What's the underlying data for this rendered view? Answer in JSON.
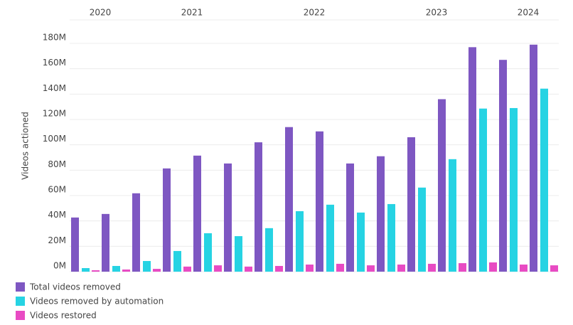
{
  "chart_data": {
    "type": "bar",
    "y_label": "Videos actioned",
    "categories": [
      null,
      null,
      null,
      null,
      null,
      null,
      null,
      null,
      null,
      null,
      null,
      null,
      null,
      null,
      null,
      null
    ],
    "top_ticks": [
      {
        "value": 0.5,
        "label": "2020"
      },
      {
        "value": 3.5,
        "label": "2021"
      },
      {
        "value": 7.5,
        "label": "2022"
      },
      {
        "value": 11.5,
        "label": "2023"
      },
      {
        "value": 14.5,
        "label": "2024"
      }
    ],
    "series": [
      {
        "name": "Total videos removed",
        "color": "#7e57c2",
        "values": [
          42.7,
          45.5,
          61.8,
          81.4,
          91.5,
          85.3,
          102,
          114,
          110.6,
          85.3,
          91,
          106,
          136,
          177,
          167,
          179
        ]
      },
      {
        "name": "Videos removed by automation",
        "color": "#26d3e3",
        "values": [
          2.8,
          4.5,
          8.4,
          16.3,
          30.3,
          28,
          34.3,
          47.7,
          52.8,
          46.6,
          53.3,
          66.3,
          88.7,
          128.6,
          129,
          144.3
        ]
      },
      {
        "name": "Videos restored",
        "color": "#e84bc3",
        "values": [
          1.1,
          1.7,
          2.2,
          4,
          5,
          4,
          4.5,
          5.6,
          6.2,
          5,
          5.6,
          6.2,
          6.7,
          7.3,
          5.6,
          5
        ]
      }
    ],
    "ylim": [
      0,
      180
    ],
    "yticks": [
      {
        "value": 0,
        "label": "0M"
      },
      {
        "value": 20,
        "label": "20M"
      },
      {
        "value": 40,
        "label": "40M"
      },
      {
        "value": 60,
        "label": "60M"
      },
      {
        "value": 80,
        "label": "80M"
      },
      {
        "value": 100,
        "label": "100M"
      },
      {
        "value": 120,
        "label": "120M"
      },
      {
        "value": 140,
        "label": "140M"
      },
      {
        "value": 160,
        "label": "160M"
      },
      {
        "value": 180,
        "label": "180M"
      }
    ],
    "grid": true
  }
}
